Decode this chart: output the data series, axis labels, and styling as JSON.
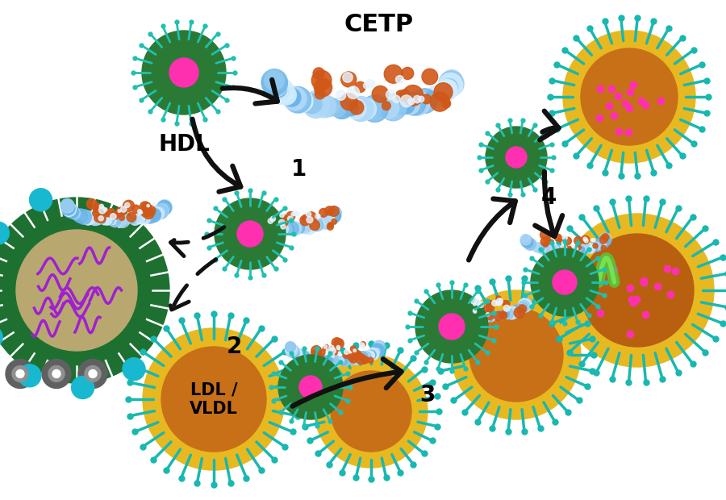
{
  "background_color": "#ffffff",
  "figsize": [
    9.0,
    6.2
  ],
  "dpi": 100,
  "cetp_label": "CETP",
  "hdl_label": "HDL",
  "ldl_label": "LDL /\nVLDL",
  "step_labels": [
    "1",
    "2",
    "3",
    "4"
  ],
  "hdl_outer_color": "#2a7a35",
  "hdl_inner_color": "#ff30b0",
  "hdl_spike_color": "#ffffff",
  "hdl_teal_spike_color": "#20c0b0",
  "ldl_outer_color": "#e8b820",
  "ldl_teal_color": "#18b8b0",
  "ldl_core_color": "#c87018",
  "ldl_dot_color": "#ff30b0",
  "arrow_color": "#111111",
  "step_fontsize": 20,
  "label_fontsize": 20
}
